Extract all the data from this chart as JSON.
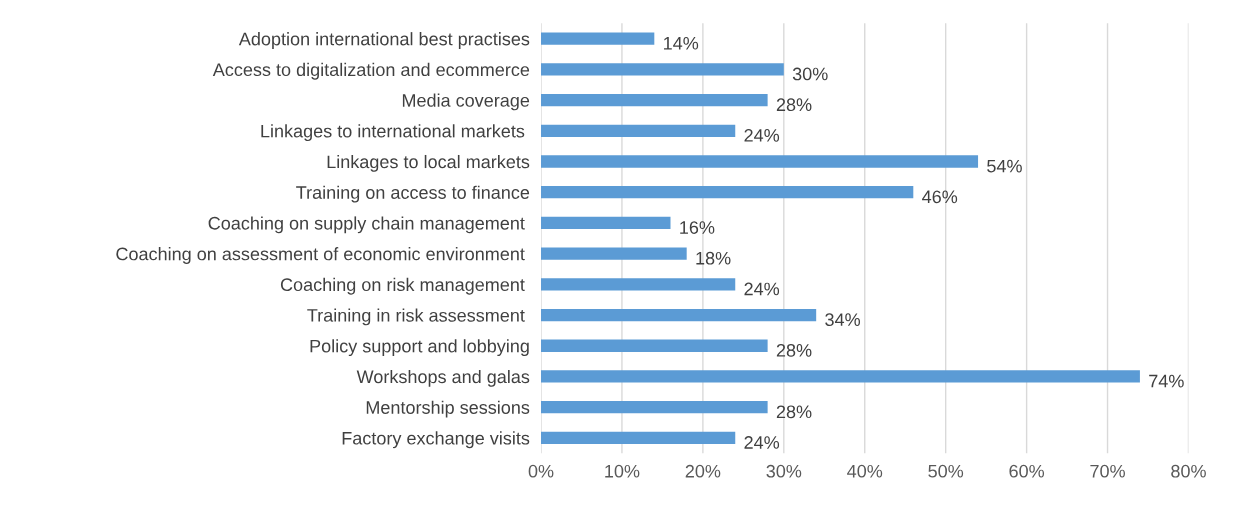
{
  "chart_data": {
    "type": "bar",
    "orientation": "horizontal",
    "categories": [
      "Adoption international best practises",
      "Access to digitalization and ecommerce",
      "Media coverage",
      "Linkages to international markets ",
      "Linkages to local markets",
      "Training on access to finance",
      "Coaching on supply chain management ",
      "Coaching on assessment of economic environment ",
      "Coaching on risk management ",
      "Training in risk assessment ",
      "Policy support and lobbying",
      "Workshops and galas",
      "Mentorship sessions",
      "Factory exchange visits"
    ],
    "values": [
      14,
      30,
      28,
      24,
      54,
      46,
      16,
      18,
      24,
      34,
      28,
      74,
      28,
      24
    ],
    "value_labels": [
      "14%",
      "30%",
      "28%",
      "24%",
      "54%",
      "46%",
      "16%",
      "18%",
      "24%",
      "34%",
      "28%",
      "74%",
      "28%",
      "24%"
    ],
    "color": "#5b9bd5",
    "xlim": [
      0,
      80
    ],
    "xticks": [
      {
        "value": 0,
        "label": "0%"
      },
      {
        "value": 10,
        "label": "10%"
      },
      {
        "value": 20,
        "label": "20%"
      },
      {
        "value": 30,
        "label": "30%"
      },
      {
        "value": 40,
        "label": "40%"
      },
      {
        "value": 50,
        "label": "50%"
      },
      {
        "value": 60,
        "label": "60%"
      },
      {
        "value": 70,
        "label": "70%"
      },
      {
        "value": 80,
        "label": "80%"
      }
    ],
    "grid": "x"
  }
}
